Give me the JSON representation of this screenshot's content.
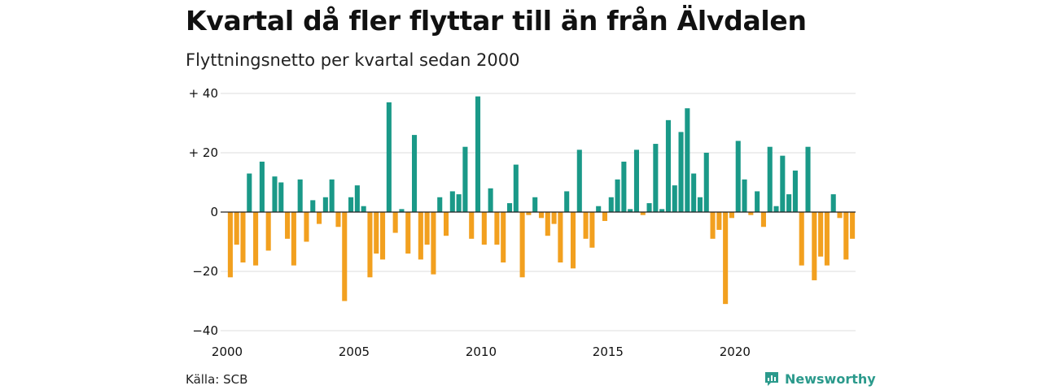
{
  "title": "Kvartal då fler flyttar till än från Älvdalen",
  "subtitle": "Flyttningsnetto per kvartal sedan 2000",
  "source": "Källa: SCB",
  "brand": {
    "name": "Newsworthy",
    "icon": "newsworthy-logo-icon",
    "color": "#2b9a8c"
  },
  "colors": {
    "positive": "#1a9988",
    "negative": "#f2a01f",
    "grid": "#dddddd",
    "zero": "#222222"
  },
  "chart_data": {
    "type": "bar",
    "title": "Kvartal då fler flyttar till än från Älvdalen",
    "subtitle": "Flyttningsnetto per kvartal sedan 2000",
    "xlabel": "",
    "ylabel": "",
    "x_start": 2000,
    "x_ticks": [
      {
        "value": 2000,
        "label": "2000"
      },
      {
        "value": 2005,
        "label": "2005"
      },
      {
        "value": 2010,
        "label": "2010"
      },
      {
        "value": 2015,
        "label": "2015"
      },
      {
        "value": 2020,
        "label": "2020"
      }
    ],
    "y_ticks": [
      {
        "value": 40,
        "label": "+ 40"
      },
      {
        "value": 20,
        "label": "+ 20"
      },
      {
        "value": 0,
        "label": "0"
      },
      {
        "value": -20,
        "label": "−20"
      },
      {
        "value": -40,
        "label": "−40"
      }
    ],
    "ylim": [
      -40,
      40
    ],
    "grid": true,
    "series": [
      {
        "values": [
          -22,
          -11,
          -17,
          13,
          -18,
          17,
          -13,
          12,
          10,
          -9,
          -18,
          11,
          -10,
          4,
          -4,
          5,
          11,
          -5,
          -30,
          5,
          9,
          2,
          -22,
          -14,
          -16,
          37,
          -7,
          1,
          -14,
          26,
          -16,
          -11,
          -21,
          5,
          -8,
          7,
          6,
          22,
          -9,
          39,
          -11,
          8,
          -11,
          -17,
          3,
          16,
          -22,
          -1,
          5,
          -2,
          -8,
          -4,
          -17,
          7,
          -19,
          21,
          -9,
          -12,
          2,
          -3,
          5,
          11,
          17,
          1,
          21,
          -1,
          3,
          23,
          1,
          31,
          9,
          27,
          35,
          13,
          5,
          20,
          -9,
          -6,
          -31,
          -2,
          24,
          11,
          -1,
          7,
          -5,
          22,
          2,
          19,
          6,
          14,
          -18,
          22,
          -23,
          -15,
          -18,
          6,
          -2,
          -16,
          -9
        ]
      }
    ]
  }
}
